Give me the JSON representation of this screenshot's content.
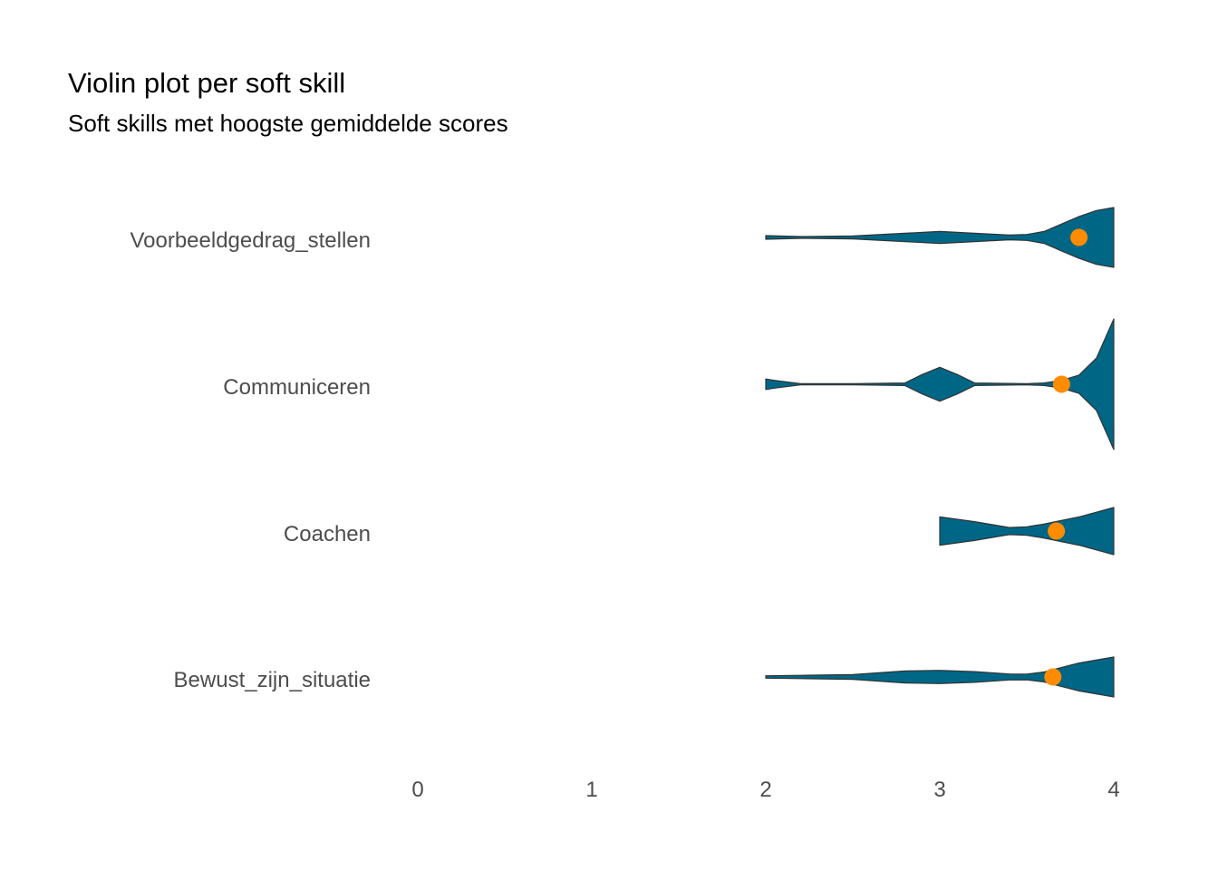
{
  "chart_data": {
    "type": "violin",
    "title": "Violin plot per soft skill",
    "subtitle": "Soft skills met hoogste gemiddelde scores",
    "xlim": [
      0,
      4
    ],
    "x_ticks": [
      "0",
      "1",
      "2",
      "3",
      "4"
    ],
    "grid": false,
    "orientation": "horizontal",
    "colors": {
      "violin_fill": "#006685",
      "violin_stroke": "#333333",
      "mean_point": "#ff8c00"
    },
    "categories": [
      "Voorbeeldgedrag_stellen",
      "Communiceren",
      "Coachen",
      "Bewust_zijn_situatie"
    ],
    "series": [
      {
        "category": "Voorbeeldgedrag_stellen",
        "mean": 3.8,
        "density": [
          [
            2.0,
            0.06
          ],
          [
            2.2,
            0.03
          ],
          [
            2.5,
            0.05
          ],
          [
            2.8,
            0.14
          ],
          [
            3.0,
            0.2
          ],
          [
            3.2,
            0.14
          ],
          [
            3.4,
            0.08
          ],
          [
            3.5,
            0.1
          ],
          [
            3.6,
            0.2
          ],
          [
            3.7,
            0.45
          ],
          [
            3.8,
            0.7
          ],
          [
            3.9,
            0.9
          ],
          [
            4.0,
            1.0
          ]
        ]
      },
      {
        "category": "Communiceren",
        "mean": 3.7,
        "density": [
          [
            2.0,
            0.08
          ],
          [
            2.05,
            0.06
          ],
          [
            2.2,
            0.01
          ],
          [
            2.5,
            0.01
          ],
          [
            2.8,
            0.02
          ],
          [
            2.9,
            0.15
          ],
          [
            3.0,
            0.26
          ],
          [
            3.1,
            0.15
          ],
          [
            3.2,
            0.02
          ],
          [
            3.5,
            0.01
          ],
          [
            3.6,
            0.02
          ],
          [
            3.7,
            0.06
          ],
          [
            3.8,
            0.14
          ],
          [
            3.9,
            0.4
          ],
          [
            3.95,
            0.7
          ],
          [
            4.0,
            1.0
          ]
        ]
      },
      {
        "category": "Coachen",
        "mean": 3.67,
        "density": [
          [
            3.0,
            0.6
          ],
          [
            3.2,
            0.4
          ],
          [
            3.4,
            0.15
          ],
          [
            3.5,
            0.18
          ],
          [
            3.6,
            0.3
          ],
          [
            3.8,
            0.6
          ],
          [
            4.0,
            1.0
          ]
        ]
      },
      {
        "category": "Bewust_zijn_situatie",
        "mean": 3.65,
        "density": [
          [
            2.0,
            0.06
          ],
          [
            2.2,
            0.08
          ],
          [
            2.5,
            0.12
          ],
          [
            2.8,
            0.3
          ],
          [
            3.0,
            0.33
          ],
          [
            3.2,
            0.27
          ],
          [
            3.4,
            0.15
          ],
          [
            3.5,
            0.14
          ],
          [
            3.6,
            0.25
          ],
          [
            3.8,
            0.7
          ],
          [
            4.0,
            1.0
          ]
        ]
      }
    ]
  }
}
